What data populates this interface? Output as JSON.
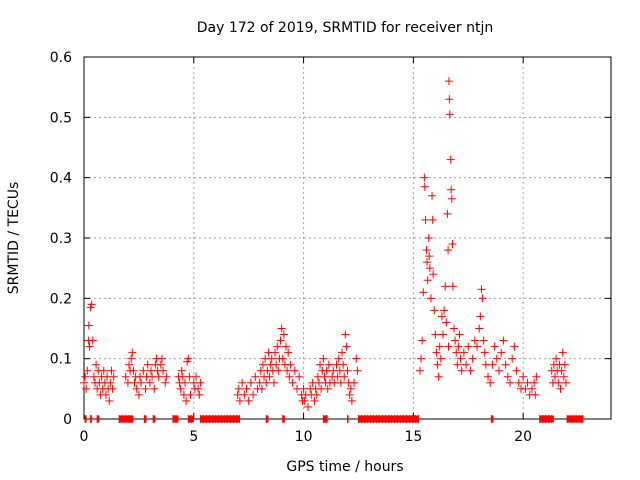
{
  "chart_data": {
    "type": "scatter",
    "title": "Day 172 of 2019, SRMTID for receiver ntjn",
    "xlabel": "GPS time / hours",
    "ylabel": "SRMTID / TECUs",
    "xlim": [
      0,
      24
    ],
    "ylim": [
      0,
      0.6
    ],
    "grid": true,
    "marker": "+",
    "color": "#ff0000",
    "xticks": [
      0,
      5,
      10,
      15,
      20
    ],
    "xtick_labels": [
      "0",
      "5",
      "10",
      "15",
      "20"
    ],
    "yticks": [
      0,
      0.1,
      0.2,
      0.3,
      0.4,
      0.5,
      0.6
    ],
    "ytick_labels": [
      "0",
      "0.1",
      "0.2",
      "0.3",
      "0.4",
      "0.5",
      "0.6"
    ],
    "series": [
      {
        "name": "ntjn",
        "points": [
          [
            0.0,
            0.06
          ],
          [
            0.05,
            0.07
          ],
          [
            0.1,
            0.05
          ],
          [
            0.15,
            0.08
          ],
          [
            0.2,
            0.13
          ],
          [
            0.22,
            0.155
          ],
          [
            0.25,
            0.12
          ],
          [
            0.3,
            0.185
          ],
          [
            0.35,
            0.19
          ],
          [
            0.4,
            0.13
          ],
          [
            0.45,
            0.07
          ],
          [
            0.5,
            0.06
          ],
          [
            0.55,
            0.09
          ],
          [
            0.6,
            0.05
          ],
          [
            0.65,
            0.08
          ],
          [
            0.7,
            0.06
          ],
          [
            0.75,
            0.04
          ],
          [
            0.8,
            0.07
          ],
          [
            0.85,
            0.05
          ],
          [
            0.9,
            0.08
          ],
          [
            0.95,
            0.06
          ],
          [
            1.0,
            0.04
          ],
          [
            1.05,
            0.07
          ],
          [
            1.1,
            0.05
          ],
          [
            1.15,
            0.03
          ],
          [
            1.2,
            0.06
          ],
          [
            1.25,
            0.08
          ],
          [
            1.3,
            0.05
          ],
          [
            1.35,
            0.07
          ],
          [
            1.9,
            0.07
          ],
          [
            2.0,
            0.06
          ],
          [
            2.05,
            0.09
          ],
          [
            2.1,
            0.08
          ],
          [
            2.15,
            0.1
          ],
          [
            2.2,
            0.11
          ],
          [
            2.25,
            0.08
          ],
          [
            2.3,
            0.06
          ],
          [
            2.35,
            0.07
          ],
          [
            2.4,
            0.05
          ],
          [
            2.5,
            0.04
          ],
          [
            2.55,
            0.07
          ],
          [
            2.6,
            0.06
          ],
          [
            2.7,
            0.08
          ],
          [
            2.8,
            0.05
          ],
          [
            2.85,
            0.07
          ],
          [
            2.9,
            0.09
          ],
          [
            3.0,
            0.06
          ],
          [
            3.05,
            0.08
          ],
          [
            3.1,
            0.07
          ],
          [
            3.2,
            0.05
          ],
          [
            3.25,
            0.09
          ],
          [
            3.3,
            0.1
          ],
          [
            3.35,
            0.08
          ],
          [
            3.4,
            0.07
          ],
          [
            3.5,
            0.09
          ],
          [
            3.55,
            0.1
          ],
          [
            3.6,
            0.08
          ],
          [
            3.7,
            0.06
          ],
          [
            3.75,
            0.07
          ],
          [
            4.3,
            0.07
          ],
          [
            4.35,
            0.06
          ],
          [
            4.4,
            0.05
          ],
          [
            4.45,
            0.08
          ],
          [
            4.5,
            0.07
          ],
          [
            4.55,
            0.04
          ],
          [
            4.6,
            0.06
          ],
          [
            4.65,
            0.03
          ],
          [
            4.7,
            0.095
          ],
          [
            4.75,
            0.1
          ],
          [
            4.8,
            0.07
          ],
          [
            4.85,
            0.04
          ],
          [
            5.0,
            0.06
          ],
          [
            5.05,
            0.05
          ],
          [
            5.1,
            0.07
          ],
          [
            5.2,
            0.05
          ],
          [
            5.25,
            0.04
          ],
          [
            5.3,
            0.06
          ],
          [
            7.0,
            0.04
          ],
          [
            7.05,
            0.05
          ],
          [
            7.1,
            0.03
          ],
          [
            7.2,
            0.06
          ],
          [
            7.3,
            0.04
          ],
          [
            7.4,
            0.05
          ],
          [
            7.5,
            0.03
          ],
          [
            7.6,
            0.06
          ],
          [
            7.7,
            0.04
          ],
          [
            7.8,
            0.07
          ],
          [
            7.9,
            0.05
          ],
          [
            8.0,
            0.06
          ],
          [
            8.05,
            0.08
          ],
          [
            8.1,
            0.05
          ],
          [
            8.15,
            0.09
          ],
          [
            8.2,
            0.07
          ],
          [
            8.25,
            0.1
          ],
          [
            8.3,
            0.06
          ],
          [
            8.35,
            0.08
          ],
          [
            8.4,
            0.11
          ],
          [
            8.45,
            0.07
          ],
          [
            8.5,
            0.09
          ],
          [
            8.55,
            0.1
          ],
          [
            8.6,
            0.08
          ],
          [
            8.65,
            0.06
          ],
          [
            8.7,
            0.11
          ],
          [
            8.75,
            0.09
          ],
          [
            8.8,
            0.12
          ],
          [
            8.85,
            0.08
          ],
          [
            8.9,
            0.1
          ],
          [
            8.95,
            0.13
          ],
          [
            9.0,
            0.15
          ],
          [
            9.05,
            0.1
          ],
          [
            9.1,
            0.14
          ],
          [
            9.15,
            0.09
          ],
          [
            9.2,
            0.12
          ],
          [
            9.25,
            0.08
          ],
          [
            9.3,
            0.11
          ],
          [
            9.35,
            0.07
          ],
          [
            9.4,
            0.09
          ],
          [
            9.5,
            0.06
          ],
          [
            9.6,
            0.08
          ],
          [
            9.7,
            0.05
          ],
          [
            9.8,
            0.07
          ],
          [
            9.9,
            0.04
          ],
          [
            9.95,
            0.03
          ],
          [
            10.0,
            0.05
          ],
          [
            10.05,
            0.03
          ],
          [
            10.1,
            0.04
          ],
          [
            10.2,
            0.02
          ],
          [
            10.3,
            0.05
          ],
          [
            10.35,
            0.04
          ],
          [
            10.4,
            0.06
          ],
          [
            10.5,
            0.03
          ],
          [
            10.55,
            0.05
          ],
          [
            10.6,
            0.04
          ],
          [
            10.65,
            0.07
          ],
          [
            10.7,
            0.06
          ],
          [
            10.75,
            0.09
          ],
          [
            10.8,
            0.05
          ],
          [
            10.85,
            0.08
          ],
          [
            10.9,
            0.1
          ],
          [
            10.95,
            0.07
          ],
          [
            11.0,
            0.06
          ],
          [
            11.05,
            0.08
          ],
          [
            11.1,
            0.05
          ],
          [
            11.15,
            0.09
          ],
          [
            11.2,
            0.06
          ],
          [
            11.3,
            0.07
          ],
          [
            11.35,
            0.08
          ],
          [
            11.4,
            0.06
          ],
          [
            11.5,
            0.09
          ],
          [
            11.55,
            0.07
          ],
          [
            11.6,
            0.1
          ],
          [
            11.65,
            0.08
          ],
          [
            11.7,
            0.06
          ],
          [
            11.75,
            0.11
          ],
          [
            11.8,
            0.09
          ],
          [
            11.85,
            0.07
          ],
          [
            11.9,
            0.14
          ],
          [
            11.95,
            0.12
          ],
          [
            12.0,
            0.08
          ],
          [
            12.05,
            0.06
          ],
          [
            12.1,
            0.04
          ],
          [
            12.15,
            0.05
          ],
          [
            12.2,
            0.03
          ],
          [
            12.3,
            0.06
          ],
          [
            12.4,
            0.1
          ],
          [
            12.45,
            0.08
          ],
          [
            15.3,
            0.08
          ],
          [
            15.35,
            0.1
          ],
          [
            15.4,
            0.13
          ],
          [
            15.45,
            0.21
          ],
          [
            15.5,
            0.4
          ],
          [
            15.52,
            0.385
          ],
          [
            15.55,
            0.33
          ],
          [
            15.6,
            0.28
          ],
          [
            15.62,
            0.26
          ],
          [
            15.65,
            0.23
          ],
          [
            15.7,
            0.3
          ],
          [
            15.72,
            0.27
          ],
          [
            15.75,
            0.25
          ],
          [
            15.8,
            0.2
          ],
          [
            15.85,
            0.37
          ],
          [
            15.88,
            0.33
          ],
          [
            15.9,
            0.24
          ],
          [
            15.95,
            0.18
          ],
          [
            16.0,
            0.14
          ],
          [
            16.05,
            0.11
          ],
          [
            16.1,
            0.09
          ],
          [
            16.15,
            0.07
          ],
          [
            16.2,
            0.12
          ],
          [
            16.25,
            0.1
          ],
          [
            16.3,
            0.17
          ],
          [
            16.35,
            0.14
          ],
          [
            16.4,
            0.18
          ],
          [
            16.45,
            0.22
          ],
          [
            16.5,
            0.16
          ],
          [
            16.55,
            0.34
          ],
          [
            16.58,
            0.28
          ],
          [
            16.6,
            0.12
          ],
          [
            16.62,
            0.56
          ],
          [
            16.64,
            0.53
          ],
          [
            16.66,
            0.505
          ],
          [
            16.7,
            0.43
          ],
          [
            16.72,
            0.38
          ],
          [
            16.75,
            0.365
          ],
          [
            16.78,
            0.29
          ],
          [
            16.8,
            0.22
          ],
          [
            16.85,
            0.15
          ],
          [
            16.9,
            0.13
          ],
          [
            16.95,
            0.11
          ],
          [
            17.0,
            0.09
          ],
          [
            17.05,
            0.12
          ],
          [
            17.1,
            0.14
          ],
          [
            17.15,
            0.1
          ],
          [
            17.2,
            0.08
          ],
          [
            17.3,
            0.11
          ],
          [
            17.4,
            0.09
          ],
          [
            17.5,
            0.12
          ],
          [
            17.6,
            0.08
          ],
          [
            17.7,
            0.1
          ],
          [
            17.8,
            0.13
          ],
          [
            17.9,
            0.12
          ],
          [
            18.0,
            0.15
          ],
          [
            18.05,
            0.17
          ],
          [
            18.1,
            0.215
          ],
          [
            18.15,
            0.2
          ],
          [
            18.2,
            0.13
          ],
          [
            18.25,
            0.11
          ],
          [
            18.3,
            0.09
          ],
          [
            18.4,
            0.07
          ],
          [
            18.5,
            0.06
          ],
          [
            18.6,
            0.09
          ],
          [
            18.7,
            0.12
          ],
          [
            18.8,
            0.1
          ],
          [
            18.9,
            0.08
          ],
          [
            19.0,
            0.11
          ],
          [
            19.1,
            0.13
          ],
          [
            19.2,
            0.09
          ],
          [
            19.3,
            0.07
          ],
          [
            19.4,
            0.06
          ],
          [
            19.5,
            0.1
          ],
          [
            19.6,
            0.12
          ],
          [
            19.7,
            0.08
          ],
          [
            19.8,
            0.06
          ],
          [
            19.9,
            0.05
          ],
          [
            20.0,
            0.07
          ],
          [
            20.1,
            0.05
          ],
          [
            20.2,
            0.06
          ],
          [
            20.3,
            0.04
          ],
          [
            20.4,
            0.05
          ],
          [
            20.5,
            0.06
          ],
          [
            20.55,
            0.04
          ],
          [
            20.6,
            0.07
          ],
          [
            21.3,
            0.08
          ],
          [
            21.35,
            0.06
          ],
          [
            21.4,
            0.09
          ],
          [
            21.45,
            0.07
          ],
          [
            21.5,
            0.1
          ],
          [
            21.55,
            0.08
          ],
          [
            21.6,
            0.06
          ],
          [
            21.65,
            0.09
          ],
          [
            21.7,
            0.05
          ],
          [
            21.75,
            0.08
          ],
          [
            21.8,
            0.11
          ],
          [
            21.85,
            0.07
          ],
          [
            21.9,
            0.09
          ],
          [
            21.95,
            0.06
          ]
        ],
        "zero_spans": [
          [
            0.05,
            0.12
          ],
          [
            0.3,
            0.37
          ],
          [
            0.6,
            0.7
          ],
          [
            1.6,
            2.25
          ],
          [
            2.75,
            2.85
          ],
          [
            3.15,
            3.25
          ],
          [
            4.05,
            4.3
          ],
          [
            4.75,
            5.0
          ],
          [
            5.3,
            7.1
          ],
          [
            8.3,
            8.4
          ],
          [
            9.05,
            9.15
          ],
          [
            10.9,
            11.1
          ],
          [
            12.0,
            12.05
          ],
          [
            12.5,
            15.25
          ],
          [
            18.55,
            18.65
          ],
          [
            20.75,
            21.4
          ],
          [
            22.0,
            22.75
          ]
        ]
      }
    ]
  }
}
